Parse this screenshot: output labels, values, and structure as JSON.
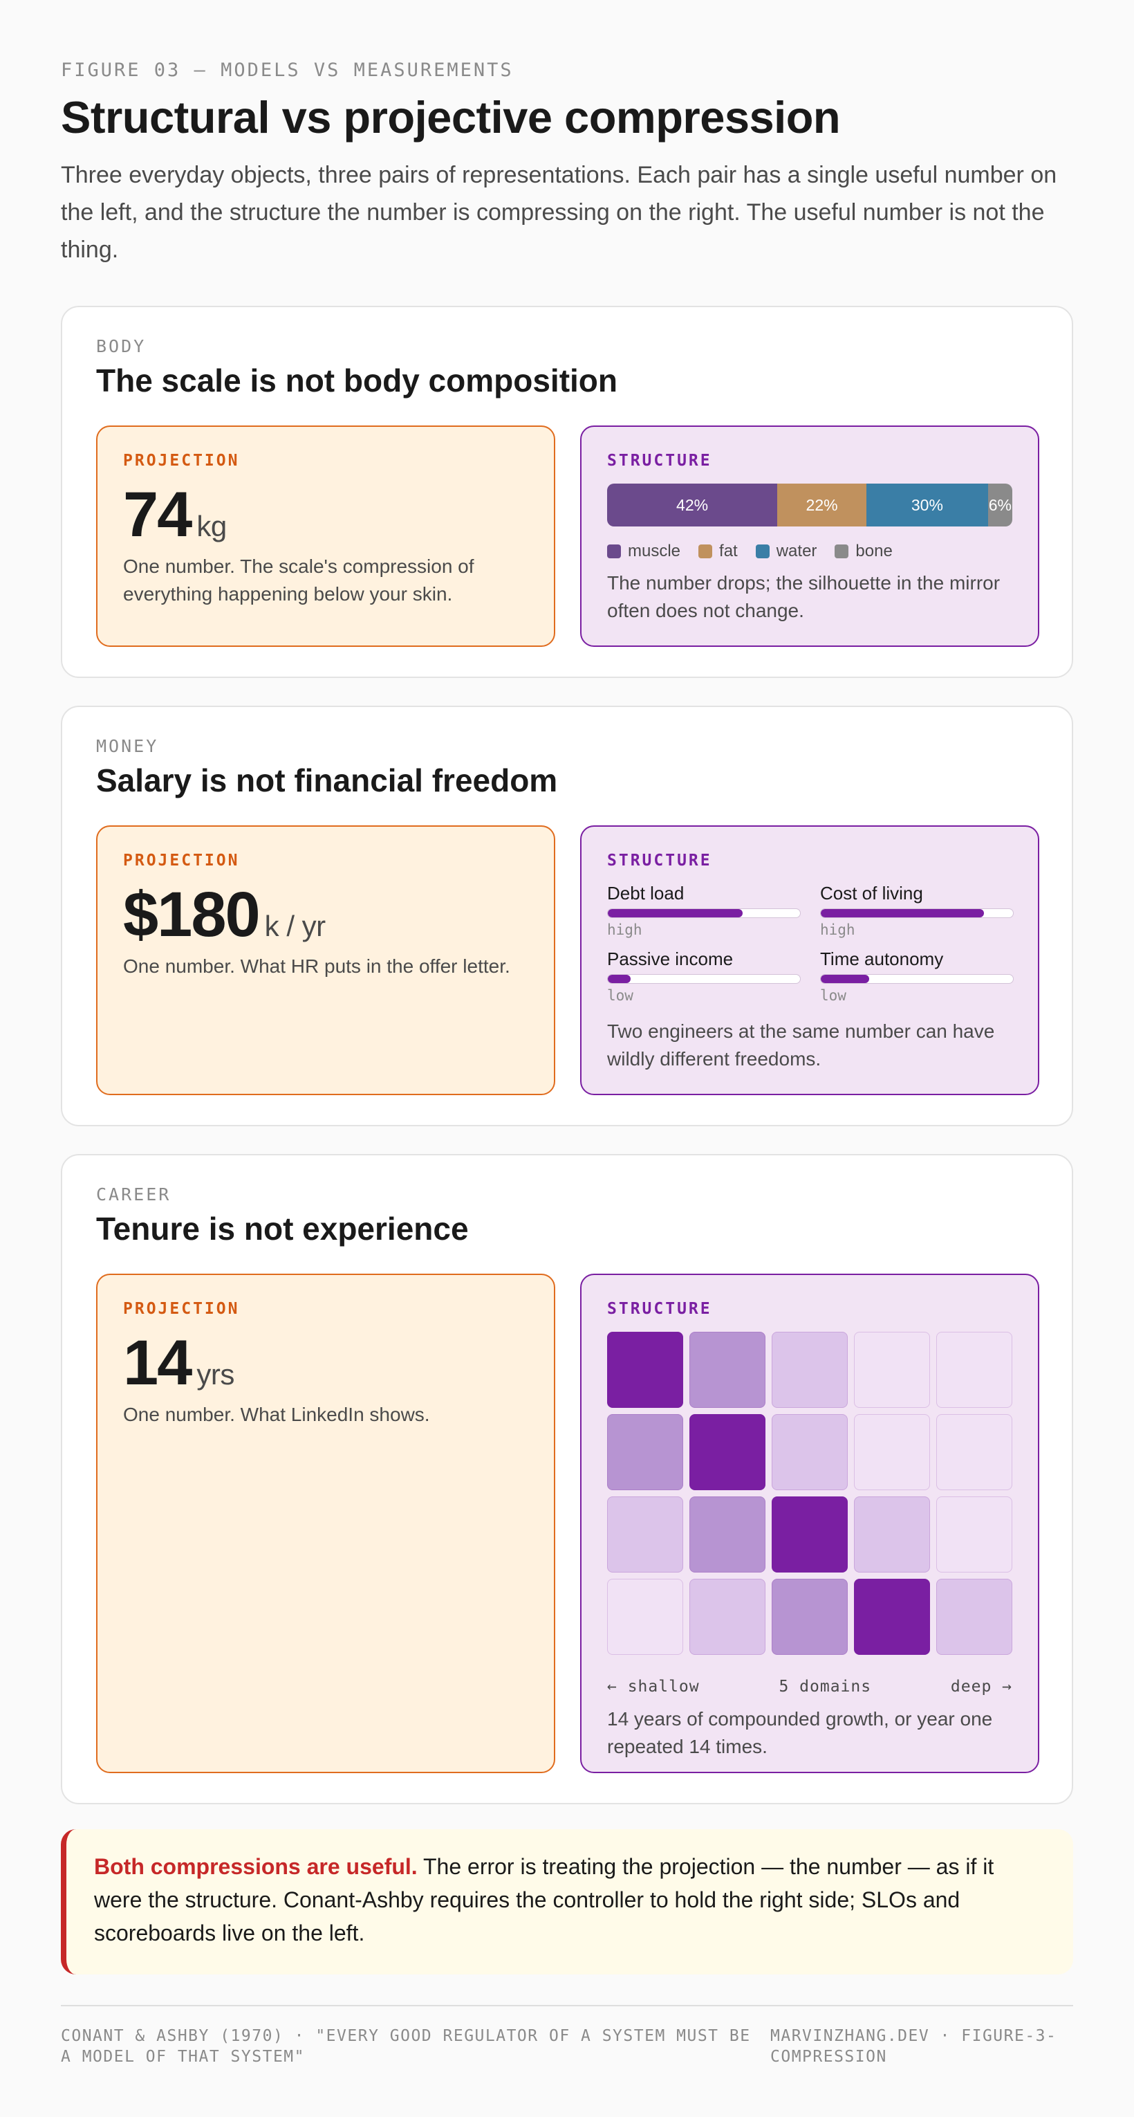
{
  "header": {
    "eyebrow": "FIGURE 03 — MODELS VS MEASUREMENTS",
    "title": "Structural vs projective compression",
    "subtitle": "Three everyday objects, three pairs of representations. Each pair has a single useful number on the left, and the structure the number is compressing on the right. The useful number is not the thing."
  },
  "sections": {
    "body": {
      "label": "BODY",
      "title": "The scale is not body composition",
      "projection": {
        "label": "PROJECTION",
        "value": "74",
        "unit": "kg",
        "desc": "One number. The scale's compression of everything happening below your skin."
      },
      "structure": {
        "label": "STRUCTURE",
        "segments": [
          {
            "name": "muscle",
            "percent": 42,
            "text": "42%",
            "color": "#6b4a8c"
          },
          {
            "name": "fat",
            "percent": 22,
            "text": "22%",
            "color": "#c0915e"
          },
          {
            "name": "water",
            "percent": 30,
            "text": "30%",
            "color": "#3a7ea6"
          },
          {
            "name": "bone",
            "percent": 6,
            "text": "6%",
            "color": "#8a8a8a"
          }
        ],
        "desc": "The number drops; the silhouette in the mirror often does not change."
      }
    },
    "money": {
      "label": "MONEY",
      "title": "Salary is not financial freedom",
      "projection": {
        "label": "PROJECTION",
        "value": "$180",
        "unit": "k / yr",
        "desc": "One number. What HR puts in the offer letter."
      },
      "structure": {
        "label": "STRUCTURE",
        "meters": [
          {
            "name": "Debt load",
            "level": "high",
            "fill": 0.7
          },
          {
            "name": "Cost of living",
            "level": "high",
            "fill": 0.85
          },
          {
            "name": "Passive income",
            "level": "low",
            "fill": 0.12
          },
          {
            "name": "Time autonomy",
            "level": "low",
            "fill": 0.25
          }
        ],
        "desc": "Two engineers at the same number can have wildly different freedoms."
      }
    },
    "career": {
      "label": "CAREER",
      "title": "Tenure is not experience",
      "projection": {
        "label": "PROJECTION",
        "value": "14",
        "unit": "yrs",
        "desc": "One number. What LinkedIn shows."
      },
      "structure": {
        "label": "STRUCTURE",
        "grid_colors": [
          "#7a1fa2",
          "#b794d2",
          "#dcc4ea",
          "#f1e2f5"
        ],
        "grid_levels": [
          [
            0,
            1,
            2,
            3,
            3
          ],
          [
            1,
            0,
            2,
            3,
            3
          ],
          [
            2,
            1,
            0,
            2,
            3
          ],
          [
            3,
            2,
            1,
            0,
            2
          ]
        ],
        "axis_left": "← shallow",
        "axis_mid": "5 domains",
        "axis_right": "deep →",
        "desc": "14 years of compounded growth, or year one repeated 14 times."
      }
    }
  },
  "callout": {
    "lead": "Both compressions are useful.",
    "text": " The error is treating the projection — the number — as if it were the structure. Conant-Ashby requires the controller to hold the right side; SLOs and scoreboards live on the left."
  },
  "footer": {
    "left": "CONANT & ASHBY (1970) · \"EVERY GOOD REGULATOR OF A SYSTEM MUST BE A MODEL OF THAT SYSTEM\"",
    "right": "MARVINZHANG.DEV · FIGURE-3-COMPRESSION"
  }
}
